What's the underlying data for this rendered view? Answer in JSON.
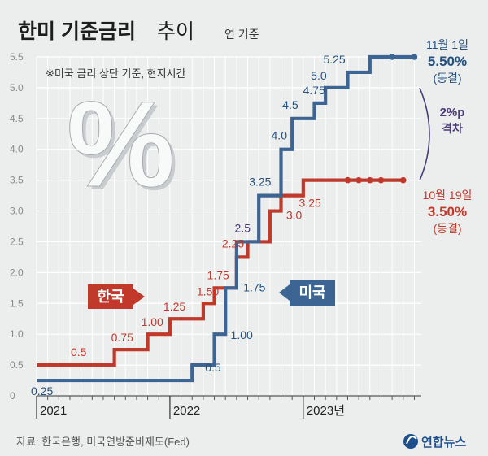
{
  "title": {
    "main": "한미 기준금리",
    "sub": "추이",
    "basis": "연 기준"
  },
  "note": "※미국 금리 상단 기준, 현지시간",
  "source": "자료: 한국은행, 미국연방준비제도(Fed)",
  "logo": "연합뉴스",
  "colors": {
    "korea": "#c0392b",
    "us": "#3d6593",
    "gap": "#4a3a78",
    "bg": "#eceeee",
    "grid": "#ffffff"
  },
  "chart_data": {
    "type": "line",
    "ylim": [
      0,
      5.5
    ],
    "yticks": [
      "0",
      "0.5",
      "1.0",
      "1.5",
      "2.0",
      "2.5",
      "3.0",
      "3.5",
      "4.0",
      "4.5",
      "5.0",
      "5.5"
    ],
    "x_year_labels": [
      "2021",
      "2022",
      "2023년"
    ],
    "series": [
      {
        "name": "한국",
        "steps": [
          {
            "date": "2021-01",
            "value": 0.5,
            "label": "0.5"
          },
          {
            "date": "2021-08",
            "value": 0.75,
            "label": "0.75"
          },
          {
            "date": "2021-11",
            "value": 1.0,
            "label": "1.00"
          },
          {
            "date": "2022-01",
            "value": 1.25,
            "label": "1.25"
          },
          {
            "date": "2022-04",
            "value": 1.5,
            "label": "1.50"
          },
          {
            "date": "2022-05",
            "value": 1.75,
            "label": "1.75"
          },
          {
            "date": "2022-07",
            "value": 2.25,
            "label": "2.25"
          },
          {
            "date": "2022-08",
            "value": 2.5,
            "label": "2.5"
          },
          {
            "date": "2022-10",
            "value": 3.0,
            "label": "3.0"
          },
          {
            "date": "2022-11",
            "value": 3.25,
            "label": "3.25"
          },
          {
            "date": "2023-01",
            "value": 3.5,
            "label": ""
          }
        ],
        "holds": [
          "2023-05",
          "2023-06",
          "2023-07",
          "2023-08",
          "2023-10"
        ],
        "end": {
          "date": "2023-10",
          "value": 3.5
        },
        "end_note": {
          "date": "10월 19일",
          "value": "3.50%",
          "status": "(동결)"
        }
      },
      {
        "name": "미국",
        "steps": [
          {
            "date": "2021-01",
            "value": 0.25,
            "label": "0.25"
          },
          {
            "date": "2022-03",
            "value": 0.5,
            "label": "0.5"
          },
          {
            "date": "2022-05",
            "value": 1.0,
            "label": "1.00"
          },
          {
            "date": "2022-06",
            "value": 1.75,
            "label": "1.75"
          },
          {
            "date": "2022-07",
            "value": 2.5,
            "label": ""
          },
          {
            "date": "2022-09",
            "value": 3.25,
            "label": "3.25"
          },
          {
            "date": "2022-11",
            "value": 4.0,
            "label": "4.0"
          },
          {
            "date": "2022-12",
            "value": 4.5,
            "label": "4.5"
          },
          {
            "date": "2023-02",
            "value": 4.75,
            "label": "4.75"
          },
          {
            "date": "2023-03",
            "value": 5.0,
            "label": "5.0"
          },
          {
            "date": "2023-05",
            "value": 5.25,
            "label": "5.25"
          },
          {
            "date": "2023-07",
            "value": 5.5,
            "label": ""
          }
        ],
        "holds": [
          "2023-09",
          "2023-11"
        ],
        "end": {
          "date": "2023-11",
          "value": 5.5
        },
        "end_note": {
          "date": "11월 1일",
          "value": "5.50%",
          "status": "(동결)"
        }
      }
    ],
    "gap_note": {
      "line1": "2%p",
      "line2": "격차"
    },
    "legend": {
      "korea": "한국",
      "us": "미국"
    }
  }
}
